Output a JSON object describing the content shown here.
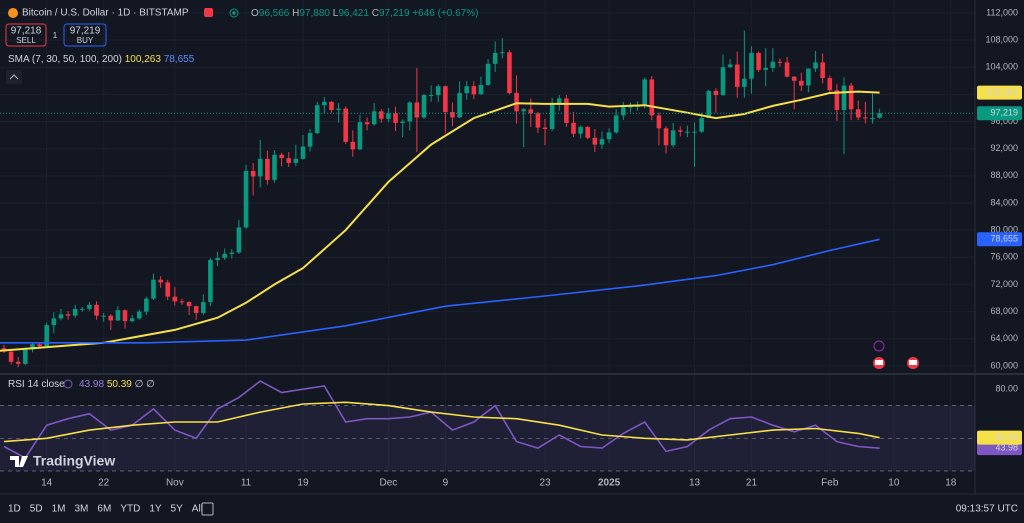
{
  "chart_data": [
    {
      "type": "candlestick",
      "title": "Bitcoin / U.S. Dollar · 1D · BITSTAMP",
      "ohlc": [
        [
          "O",
          "96,566"
        ],
        [
          "H",
          "97,880"
        ],
        [
          "L",
          "96,421"
        ],
        [
          "C",
          "97,219"
        ]
      ],
      "change": "+646 (+0.67%)",
      "up_color": "#089981",
      "down_color": "#f23645",
      "xlim": [
        -0.56,
        136.4
      ],
      "xticks": [
        {
          "value": 6,
          "label": "14"
        },
        {
          "value": 14,
          "label": "22"
        },
        {
          "value": 24,
          "label": "Nov"
        },
        {
          "value": 34,
          "label": "11"
        },
        {
          "value": 42,
          "label": "19"
        },
        {
          "value": 54,
          "label": "Dec"
        },
        {
          "value": 62,
          "label": "9"
        },
        {
          "value": 76,
          "label": "23"
        },
        {
          "value": 85,
          "label": "2025",
          "bold": true
        },
        {
          "value": 97,
          "label": "13"
        },
        {
          "value": 105,
          "label": "21"
        },
        {
          "value": 116,
          "label": "Feb"
        },
        {
          "value": 125,
          "label": "10"
        },
        {
          "value": 133,
          "label": "18"
        }
      ],
      "ylim": [
        59100,
        113900
      ],
      "yticks": [
        {
          "value": 60000,
          "label": "60,000"
        },
        {
          "value": 64000,
          "label": "64,000"
        },
        {
          "value": 68000,
          "label": "68,000"
        },
        {
          "value": 72000,
          "label": "72,000"
        },
        {
          "value": 76000,
          "label": "76,000"
        },
        {
          "value": 80000,
          "label": "80,000"
        },
        {
          "value": 84000,
          "label": "84,000"
        },
        {
          "value": 88000,
          "label": "88,000"
        },
        {
          "value": 92000,
          "label": "92,000"
        },
        {
          "value": 96000,
          "label": "96,000"
        },
        {
          "value": 100000,
          "label": "100,000"
        },
        {
          "value": 104000,
          "label": "104,000"
        },
        {
          "value": 108000,
          "label": "108,000"
        },
        {
          "value": 112000,
          "label": "112,000"
        }
      ],
      "grid": true,
      "price_label": "97,219",
      "candles": [
        [
          62600,
          63100,
          61900,
          62100
        ],
        [
          62100,
          62500,
          60200,
          60600
        ],
        [
          60600,
          61300,
          59800,
          60300
        ],
        [
          60300,
          62700,
          60100,
          62400
        ],
        [
          62400,
          63400,
          62000,
          63200
        ],
        [
          63200,
          63500,
          62500,
          62900
        ],
        [
          62900,
          66400,
          62800,
          66000
        ],
        [
          66000,
          67900,
          64800,
          67000
        ],
        [
          67000,
          68400,
          66700,
          67600
        ],
        [
          67600,
          68100,
          66800,
          67400
        ],
        [
          67400,
          69000,
          67100,
          68400
        ],
        [
          68400,
          68700,
          68000,
          68400
        ],
        [
          68400,
          69400,
          68100,
          69000
        ],
        [
          69000,
          69500,
          66800,
          67400
        ],
        [
          67400,
          67800,
          66500,
          67400
        ],
        [
          67400,
          67600,
          65300,
          66700
        ],
        [
          66700,
          68800,
          66600,
          68200
        ],
        [
          68200,
          68300,
          65500,
          66600
        ],
        [
          66600,
          67500,
          66400,
          67000
        ],
        [
          67000,
          68300,
          66800,
          68000
        ],
        [
          68000,
          70200,
          67500,
          69900
        ],
        [
          69900,
          73600,
          69700,
          72700
        ],
        [
          72700,
          73200,
          71500,
          72300
        ],
        [
          72300,
          72700,
          69700,
          70200
        ],
        [
          70200,
          71600,
          68900,
          69500
        ],
        [
          69500,
          69900,
          69000,
          69400
        ],
        [
          69400,
          69500,
          67500,
          68800
        ],
        [
          68800,
          68900,
          66800,
          67800
        ],
        [
          67800,
          70500,
          67500,
          69400
        ],
        [
          69400,
          75900,
          68800,
          75600
        ],
        [
          75600,
          76800,
          74700,
          75900
        ],
        [
          75900,
          77300,
          75600,
          76500
        ],
        [
          76500,
          77200,
          75800,
          76700
        ],
        [
          76700,
          81500,
          76500,
          80400
        ],
        [
          80400,
          89600,
          80200,
          88700
        ],
        [
          88700,
          89900,
          85100,
          87900
        ],
        [
          87900,
          93300,
          86300,
          90500
        ],
        [
          90500,
          91700,
          86700,
          87400
        ],
        [
          87400,
          91800,
          87000,
          91100
        ],
        [
          91100,
          91400,
          89400,
          90600
        ],
        [
          90600,
          91500,
          89300,
          89900
        ],
        [
          89900,
          92600,
          89400,
          90500
        ],
        [
          90500,
          94000,
          90400,
          92300
        ],
        [
          92300,
          94900,
          91600,
          94300
        ],
        [
          94300,
          98900,
          94100,
          98400
        ],
        [
          98400,
          99600,
          97200,
          98900
        ],
        [
          98900,
          99000,
          97300,
          97700
        ],
        [
          97700,
          98700,
          95800,
          97900
        ],
        [
          97900,
          98200,
          92700,
          93000
        ],
        [
          93000,
          94700,
          90800,
          91900
        ],
        [
          91900,
          97000,
          91800,
          95900
        ],
        [
          95900,
          96600,
          94700,
          95600
        ],
        [
          95600,
          98700,
          95400,
          97500
        ],
        [
          97500,
          97800,
          95800,
          96400
        ],
        [
          96400,
          98000,
          95900,
          97200
        ],
        [
          97200,
          98200,
          94600,
          95800
        ],
        [
          95800,
          96300,
          93700,
          96000
        ],
        [
          96000,
          99000,
          94700,
          98800
        ],
        [
          98800,
          103900,
          91500,
          96600
        ],
        [
          96600,
          100100,
          96400,
          99900
        ],
        [
          99900,
          101300,
          98900,
          99900
        ],
        [
          99900,
          101500,
          98900,
          101200
        ],
        [
          101200,
          101300,
          94300,
          97400
        ],
        [
          97400,
          98800,
          95300,
          96600
        ],
        [
          96600,
          101900,
          96500,
          100200
        ],
        [
          100200,
          102000,
          99200,
          101200
        ],
        [
          101200,
          101900,
          99300,
          100000
        ],
        [
          100000,
          102600,
          100000,
          101400
        ],
        [
          101400,
          105200,
          101200,
          104500
        ],
        [
          104500,
          107800,
          103300,
          106100
        ],
        [
          106100,
          108300,
          105300,
          106200
        ],
        [
          106200,
          106500,
          100000,
          100200
        ],
        [
          100200,
          102800,
          95700,
          97500
        ],
        [
          97500,
          98000,
          92200,
          97800
        ],
        [
          97800,
          99400,
          95200,
          97200
        ],
        [
          97200,
          97400,
          94300,
          95100
        ],
        [
          95100,
          96400,
          92500,
          94900
        ],
        [
          94900,
          99500,
          94600,
          98700
        ],
        [
          98700,
          99900,
          97600,
          99400
        ],
        [
          99400,
          99900,
          95200,
          95800
        ],
        [
          95800,
          97400,
          93700,
          94200
        ],
        [
          94200,
          95400,
          93500,
          95200
        ],
        [
          95200,
          95300,
          93400,
          93600
        ],
        [
          93600,
          94900,
          91500,
          92600
        ],
        [
          92600,
          94500,
          92000,
          93400
        ],
        [
          93400,
          95000,
          92800,
          94400
        ],
        [
          94400,
          97800,
          94200,
          96900
        ],
        [
          96900,
          98900,
          96200,
          98100
        ],
        [
          98100,
          98800,
          97300,
          98200
        ],
        [
          98200,
          99000,
          97600,
          98300
        ],
        [
          98300,
          102500,
          97900,
          102200
        ],
        [
          102200,
          102700,
          96200,
          96900
        ],
        [
          96900,
          97300,
          92500,
          95000
        ],
        [
          95000,
          95300,
          91300,
          92500
        ],
        [
          92500,
          95800,
          92200,
          94700
        ],
        [
          94700,
          95300,
          93800,
          94500
        ],
        [
          94500,
          95400,
          93700,
          94500
        ],
        [
          94500,
          95900,
          89300,
          94500
        ],
        [
          94500,
          97300,
          94300,
          96500
        ],
        [
          96500,
          100700,
          96500,
          100500
        ],
        [
          100500,
          100900,
          97300,
          99900
        ],
        [
          99900,
          105900,
          99800,
          104000
        ],
        [
          104000,
          105200,
          103900,
          104400
        ],
        [
          104400,
          106300,
          99500,
          101100
        ],
        [
          101100,
          109400,
          99500,
          102300
        ],
        [
          102300,
          107100,
          100100,
          106100
        ],
        [
          106100,
          106300,
          103300,
          103600
        ],
        [
          103600,
          106800,
          101200,
          103900
        ],
        [
          103900,
          106800,
          103300,
          104800
        ],
        [
          104800,
          105300,
          104100,
          104700
        ],
        [
          104700,
          105500,
          102500,
          102600
        ],
        [
          102600,
          102700,
          97800,
          102000
        ],
        [
          102000,
          103200,
          100500,
          101300
        ],
        [
          101300,
          103800,
          100300,
          103800
        ],
        [
          103800,
          106400,
          103300,
          104700
        ],
        [
          104700,
          106000,
          101600,
          102400
        ],
        [
          102400,
          102800,
          100300,
          100600
        ],
        [
          100600,
          101500,
          96100,
          97700
        ],
        [
          97700,
          102500,
          91200,
          101300
        ],
        [
          101300,
          101700,
          96200,
          97800
        ],
        [
          97800,
          99100,
          96200,
          96600
        ],
        [
          96600,
          98900,
          95700,
          96500
        ],
        [
          96500,
          100100,
          95700,
          96500
        ],
        [
          96566,
          97880,
          96421,
          97219
        ]
      ],
      "legend_title": "SMA (7, 30, 50, 100, 200)",
      "series": [
        {
          "color": "#f5e04a",
          "x": [
            -1,
            14,
            24,
            30,
            34,
            38,
            42,
            48,
            54,
            60,
            66,
            72,
            76,
            82,
            85,
            90,
            96,
            100,
            104,
            108,
            112,
            116,
            120,
            123
          ],
          "values": [
            62200,
            63400,
            65300,
            67100,
            69300,
            72000,
            74400,
            80000,
            87100,
            92600,
            96500,
            98700,
            98600,
            98600,
            98200,
            98400,
            97300,
            96500,
            97100,
            98300,
            99200,
            100200,
            100400,
            100263
          ],
          "last_label": "100,263"
        },
        {
          "color": "#2962ff",
          "x": [
            -1,
            20,
            34,
            48,
            62,
            76,
            90,
            100,
            108,
            116,
            123
          ],
          "values": [
            63400,
            63400,
            63800,
            65900,
            68800,
            70300,
            71900,
            73300,
            74900,
            77000,
            78655
          ],
          "last_label": "78,655"
        }
      ]
    },
    {
      "type": "line",
      "title": "RSI 14 close",
      "ylim": [
        29.4,
        88.1
      ],
      "yticks": [
        {
          "value": 80,
          "label": "80.00"
        }
      ],
      "bands": [
        70,
        50,
        30
      ],
      "series": [
        {
          "color": "#7e57c2",
          "x": [
            0,
            3,
            6,
            9,
            12,
            15,
            18,
            21,
            24,
            27,
            30,
            33,
            36,
            39,
            42,
            45,
            48,
            51,
            54,
            57,
            60,
            63,
            66,
            69,
            72,
            75,
            78,
            81,
            84,
            87,
            90,
            93,
            96,
            99,
            102,
            105,
            108,
            111,
            114,
            117,
            120,
            123
          ],
          "values": [
            45,
            38,
            58,
            62,
            65,
            55,
            58,
            68,
            55,
            50,
            68,
            75,
            85,
            78,
            80,
            82,
            60,
            62,
            62,
            63,
            66,
            55,
            60,
            70,
            48,
            44,
            52,
            45,
            44,
            53,
            60,
            42,
            45,
            55,
            62,
            63,
            58,
            54,
            58,
            48,
            45,
            43.98
          ],
          "last_label": "43.98"
        },
        {
          "color": "#f5e04a",
          "x": [
            0,
            6,
            12,
            18,
            24,
            30,
            36,
            42,
            48,
            54,
            60,
            66,
            72,
            78,
            84,
            90,
            96,
            102,
            108,
            114,
            120,
            123
          ],
          "values": [
            48,
            50,
            55,
            58,
            60,
            60,
            66,
            71,
            72,
            70,
            66,
            63,
            62,
            58,
            52,
            50,
            49,
            52,
            55,
            56,
            53,
            50.39
          ],
          "last_label": "50.39"
        }
      ],
      "legend_extra": "∅ ∅"
    }
  ],
  "ui": {
    "sell": {
      "price": "97,218",
      "label": "SELL"
    },
    "buy": {
      "price": "97,219",
      "label": "BUY"
    },
    "spread": "1",
    "brand": "TradingView",
    "ranges": [
      "1D",
      "5D",
      "1M",
      "3M",
      "6M",
      "YTD",
      "1Y",
      "5Y",
      "All"
    ],
    "clock": "09:13:57 UTC"
  }
}
